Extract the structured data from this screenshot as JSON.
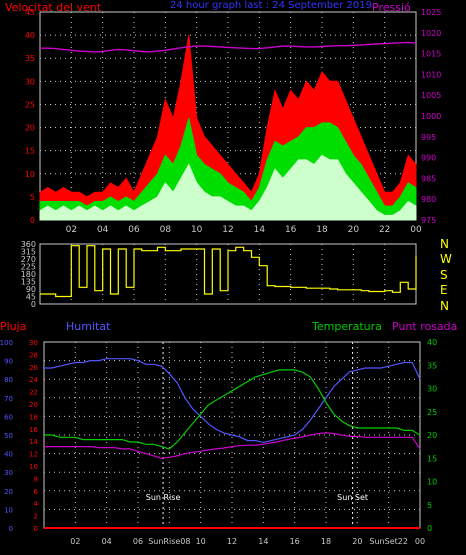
{
  "colors": {
    "background": "#000000",
    "axis": "#c8c8c8",
    "grid": "#c8c8c8",
    "wind_speed": "#ff0000",
    "wind_avg": "#00dd00",
    "wind_low": "#ccffcc",
    "pressure": "#cc00cc",
    "direction": "#ffff00",
    "rain": "#ff0000",
    "humidity": "#5555ff",
    "temperature": "#00cc00",
    "dewpoint": "#cc00cc",
    "compass": "#ffff00",
    "sun": "#ffffff"
  },
  "chart_data": [
    {
      "type": "line",
      "title": "24 hour graph last : 24 September 2019",
      "ylabel_left": "Velocitat del vent",
      "ylabel_right": "Pressió",
      "x_ticks": [
        "02",
        "04",
        "06",
        "08",
        "10",
        "12",
        "14",
        "16",
        "18",
        "20",
        "22",
        "00"
      ],
      "y_left_ticks": [
        "0",
        "5",
        "10",
        "15",
        "20",
        "25",
        "30",
        "35",
        "40",
        "45"
      ],
      "y_right_ticks": [
        "975",
        "980",
        "985",
        "990",
        "995",
        "1000",
        "1005",
        "1010",
        "1015",
        "1020",
        "1025"
      ],
      "ylim_left": [
        0,
        45
      ],
      "ylim_right": [
        975,
        1025
      ],
      "x_hours": [
        0,
        0.5,
        1,
        1.5,
        2,
        2.5,
        3,
        3.5,
        4,
        4.5,
        5,
        5.5,
        6,
        6.5,
        7,
        7.5,
        8,
        8.5,
        9,
        9.5,
        10,
        10.5,
        11,
        11.5,
        12,
        12.5,
        13,
        13.5,
        14,
        14.5,
        15,
        15.5,
        16,
        16.5,
        17,
        17.5,
        18,
        18.5,
        19,
        19.5,
        20,
        20.5,
        21,
        21.5,
        22,
        22.5,
        23,
        23.5,
        24
      ],
      "series": [
        {
          "name": "Velocitat del vent",
          "axis": "left",
          "values": [
            6,
            7,
            6,
            7,
            6,
            6,
            5,
            6,
            6,
            8,
            7,
            9,
            6,
            10,
            14,
            18,
            26,
            22,
            30,
            40,
            22,
            18,
            16,
            14,
            12,
            10,
            8,
            6,
            10,
            20,
            28,
            24,
            28,
            26,
            30,
            28,
            32,
            30,
            30,
            26,
            22,
            18,
            14,
            10,
            6,
            6,
            8,
            14,
            12
          ]
        },
        {
          "name": "",
          "axis": "left",
          "values": [
            4,
            4,
            4,
            4,
            4,
            4,
            3,
            4,
            4,
            5,
            4,
            5,
            4,
            6,
            8,
            10,
            14,
            12,
            16,
            22,
            14,
            12,
            11,
            10,
            8,
            7,
            6,
            4,
            7,
            13,
            17,
            16,
            17,
            18,
            20,
            20,
            21,
            21,
            20,
            17,
            14,
            12,
            9,
            6,
            3,
            3,
            5,
            8,
            7
          ]
        },
        {
          "name": "",
          "axis": "left",
          "values": [
            2,
            3,
            2,
            3,
            2,
            3,
            2,
            3,
            2,
            3,
            2,
            3,
            2,
            3,
            4,
            5,
            8,
            6,
            9,
            12,
            8,
            6,
            5,
            5,
            4,
            3,
            3,
            2,
            4,
            7,
            11,
            9,
            11,
            13,
            13,
            12,
            14,
            13,
            13,
            10,
            8,
            6,
            4,
            2,
            1,
            1,
            2,
            4,
            3
          ]
        },
        {
          "name": "Pressió",
          "axis": "right",
          "values": [
            1016.3,
            1016.3,
            1016.2,
            1016.0,
            1015.8,
            1015.6,
            1015.5,
            1015.4,
            1015.5,
            1015.8,
            1016.0,
            1015.9,
            1015.7,
            1015.5,
            1015.4,
            1015.6,
            1015.8,
            1016.1,
            1016.4,
            1016.6,
            1016.8,
            1016.8,
            1016.7,
            1016.6,
            1016.5,
            1016.4,
            1016.3,
            1016.2,
            1016.2,
            1016.4,
            1016.6,
            1016.8,
            1016.8,
            1016.7,
            1016.6,
            1016.6,
            1016.7,
            1016.8,
            1016.9,
            1016.9,
            1017.0,
            1017.1,
            1017.2,
            1017.3,
            1017.4,
            1017.5,
            1017.6,
            1017.7,
            1017.5
          ]
        }
      ]
    },
    {
      "type": "line",
      "y_ticks": [
        "0",
        "45",
        "90",
        "135",
        "180",
        "225",
        "270",
        "315",
        "360"
      ],
      "ylim": [
        0,
        360
      ],
      "compass_labels": [
        "N",
        "W",
        "S",
        "E",
        "N"
      ],
      "x_hours": [
        0,
        0.5,
        1,
        1.5,
        2,
        2.5,
        3,
        3.5,
        4,
        4.5,
        5,
        5.5,
        6,
        6.5,
        7,
        7.5,
        8,
        8.5,
        9,
        9.5,
        10,
        10.5,
        11,
        11.5,
        12,
        12.5,
        13,
        13.5,
        14,
        14.5,
        15,
        15.5,
        16,
        16.5,
        17,
        17.5,
        18,
        18.5,
        19,
        19.5,
        20,
        20.5,
        21,
        21.5,
        22,
        22.5,
        23,
        23.5,
        24
      ],
      "series": [
        {
          "name": "",
          "values": [
            60,
            60,
            45,
            45,
            350,
            100,
            350,
            80,
            330,
            60,
            330,
            100,
            330,
            320,
            320,
            340,
            320,
            320,
            330,
            330,
            330,
            60,
            330,
            80,
            320,
            340,
            320,
            280,
            230,
            110,
            105,
            105,
            100,
            100,
            95,
            95,
            95,
            90,
            85,
            85,
            85,
            80,
            75,
            75,
            80,
            70,
            130,
            90,
            290
          ]
        }
      ]
    },
    {
      "type": "line",
      "ylabel_left_1": "Pluja",
      "ylabel_left_2": "Humitat",
      "ylabel_right_1": "Temperatura",
      "ylabel_right_2": "Punt rosada",
      "x_ticks": [
        "02",
        "04",
        "06",
        "SunRise08",
        "10",
        "12",
        "14",
        "16",
        "18",
        "20",
        "SunSet22",
        "00"
      ],
      "humidity_ticks": [
        "0",
        "10",
        "20",
        "30",
        "40",
        "50",
        "60",
        "70",
        "80",
        "90",
        "100"
      ],
      "rain_ticks": [
        "0",
        "2",
        "4",
        "6",
        "8",
        "10",
        "12",
        "14",
        "16",
        "18",
        "20",
        "22",
        "24",
        "26",
        "28",
        "30"
      ],
      "temp_ticks": [
        "0",
        "5",
        "10",
        "15",
        "20",
        "25",
        "30",
        "35",
        "40"
      ],
      "humidity_lim": [
        0,
        100
      ],
      "temp_lim": [
        0,
        40
      ],
      "rain_lim": [
        0,
        30
      ],
      "annotations": [
        {
          "label": "Sun Rise",
          "hour": 7.6
        },
        {
          "label": "Sun Set",
          "hour": 19.7
        }
      ],
      "x_hours": [
        0,
        0.5,
        1,
        1.5,
        2,
        2.5,
        3,
        3.5,
        4,
        4.5,
        5,
        5.5,
        6,
        6.5,
        7,
        7.5,
        8,
        8.5,
        9,
        9.5,
        10,
        10.5,
        11,
        11.5,
        12,
        12.5,
        13,
        13.5,
        14,
        14.5,
        15,
        15.5,
        16,
        16.5,
        17,
        17.5,
        18,
        18.5,
        19,
        19.5,
        20,
        20.5,
        21,
        21.5,
        22,
        22.5,
        23,
        23.5,
        24
      ],
      "series": [
        {
          "name": "Pluja",
          "axis": "rain",
          "values": [
            0,
            0,
            0,
            0,
            0,
            0,
            0,
            0,
            0,
            0,
            0,
            0,
            0,
            0,
            0,
            0,
            0,
            0,
            0,
            0,
            0,
            0,
            0,
            0,
            0,
            0,
            0,
            0,
            0,
            0,
            0,
            0,
            0,
            0,
            0,
            0,
            0,
            0,
            0,
            0,
            0,
            0,
            0,
            0,
            0,
            0,
            0,
            0,
            0
          ]
        },
        {
          "name": "Humitat",
          "axis": "humidity",
          "values": [
            86,
            86,
            87,
            88,
            89,
            89,
            90,
            90,
            91,
            91,
            91,
            91,
            90,
            88,
            88,
            87,
            83,
            78,
            70,
            64,
            60,
            56,
            53,
            51,
            50,
            49,
            47,
            47,
            46,
            47,
            48,
            49,
            50,
            53,
            58,
            64,
            70,
            76,
            80,
            84,
            85,
            86,
            86,
            86,
            87,
            88,
            89,
            89,
            80
          ]
        },
        {
          "name": "Temperatura",
          "axis": "temp",
          "values": [
            20,
            20,
            19.5,
            19.5,
            19.5,
            19,
            19,
            19,
            19,
            19,
            19,
            18.5,
            18.5,
            18,
            18,
            17.5,
            17,
            18.5,
            20.5,
            22.5,
            24.5,
            26.5,
            27.5,
            28.5,
            29.5,
            30.5,
            31.5,
            32.5,
            33,
            33.5,
            34,
            34,
            34,
            33.5,
            32.5,
            30,
            27,
            24.5,
            23,
            22,
            21.5,
            21.5,
            21.5,
            21.5,
            21.5,
            21.5,
            21,
            21,
            20
          ]
        },
        {
          "name": "Punt rosada",
          "axis": "temp",
          "values": [
            17.5,
            17.5,
            17.5,
            17.5,
            17.5,
            17.5,
            17.5,
            17.3,
            17.3,
            17.3,
            17,
            17,
            16.5,
            16,
            15.5,
            15,
            15.2,
            15.5,
            16,
            16.3,
            16.5,
            16.8,
            17,
            17.2,
            17.5,
            17.7,
            17.8,
            17.8,
            18,
            18.3,
            18.6,
            19,
            19.3,
            19.6,
            20,
            20.3,
            20.5,
            20.3,
            20,
            19.7,
            19.7,
            19.5,
            19.5,
            19.5,
            19.5,
            19.5,
            19.5,
            19.5,
            17
          ]
        }
      ]
    }
  ]
}
